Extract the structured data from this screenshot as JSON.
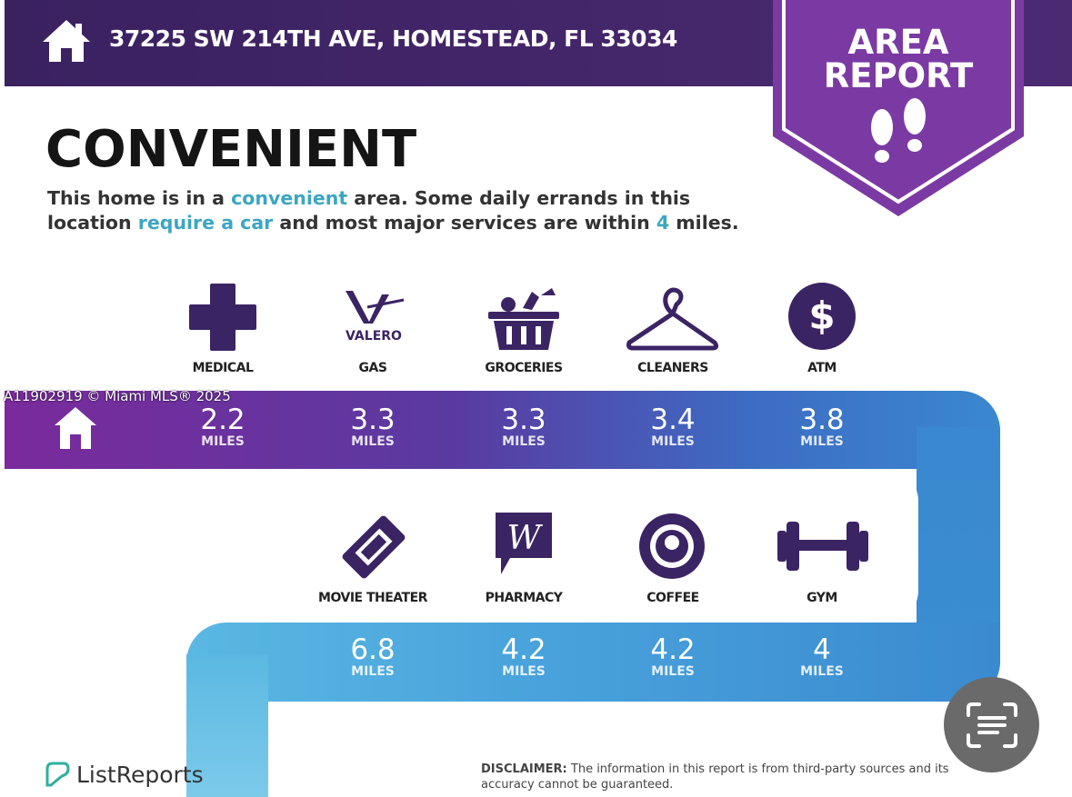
{
  "header": {
    "address": "37225 SW 214TH AVE, HOMESTEAD, FL 33034",
    "badge_line1": "AREA",
    "badge_line2": "REPORT"
  },
  "title": "CONVENIENT",
  "description": {
    "p1": "This home is in a ",
    "h1": "convenient",
    "p2": " area. Some daily errands in this",
    "p3": "location ",
    "h2": "require a car",
    "p4": " and most major services are within ",
    "h3": "4",
    "p5": " miles."
  },
  "watermark": "A11902919 © Miami MLS® 2025",
  "row1": [
    {
      "label": "MEDICAL",
      "icon": "medical-cross-icon",
      "distance": "2.2",
      "unit": "MILES"
    },
    {
      "label": "GAS",
      "icon": "valero-icon",
      "logo_text": "VALERO",
      "distance": "3.3",
      "unit": "MILES"
    },
    {
      "label": "GROCERIES",
      "icon": "grocery-basket-icon",
      "distance": "3.3",
      "unit": "MILES"
    },
    {
      "label": "CLEANERS",
      "icon": "hanger-icon",
      "distance": "3.4",
      "unit": "MILES"
    },
    {
      "label": "ATM",
      "icon": "dollar-icon",
      "distance": "3.8",
      "unit": "MILES"
    }
  ],
  "row2": [
    {
      "label": "MOVIE THEATER",
      "icon": "ticket-icon",
      "distance": "6.8",
      "unit": "MILES"
    },
    {
      "label": "PHARMACY",
      "icon": "walgreens-icon",
      "distance": "4.2",
      "unit": "MILES"
    },
    {
      "label": "COFFEE",
      "icon": "starbucks-icon",
      "distance": "4.2",
      "unit": "MILES"
    },
    {
      "label": "GYM",
      "icon": "dumbbell-icon",
      "distance": "4",
      "unit": "MILES"
    }
  ],
  "footer": {
    "brand": "ListReports",
    "disclaimer_label": "DISCLAIMER:",
    "disclaimer_text": " The information in this report is from third-party sources and its",
    "disclaimer_text2": "accuracy cannot be guaranteed."
  },
  "colors": {
    "purple_dark": "#3a2160",
    "purple": "#7a2fa0",
    "blue": "#3a8fd0",
    "light_blue": "#5bb8e0"
  }
}
